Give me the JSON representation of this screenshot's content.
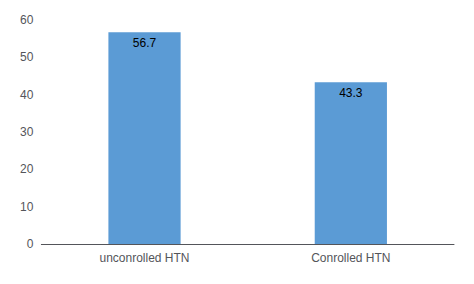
{
  "chart_data": {
    "type": "bar",
    "categories": [
      "unconrolled HTN",
      "Conrolled HTN"
    ],
    "values": [
      56.7,
      43.3
    ],
    "color": "#5b9bd5",
    "ylim": [
      0,
      60
    ],
    "yticks": [
      0,
      10,
      20,
      30,
      40,
      50,
      60
    ],
    "grid": false,
    "data_labels": true
  }
}
